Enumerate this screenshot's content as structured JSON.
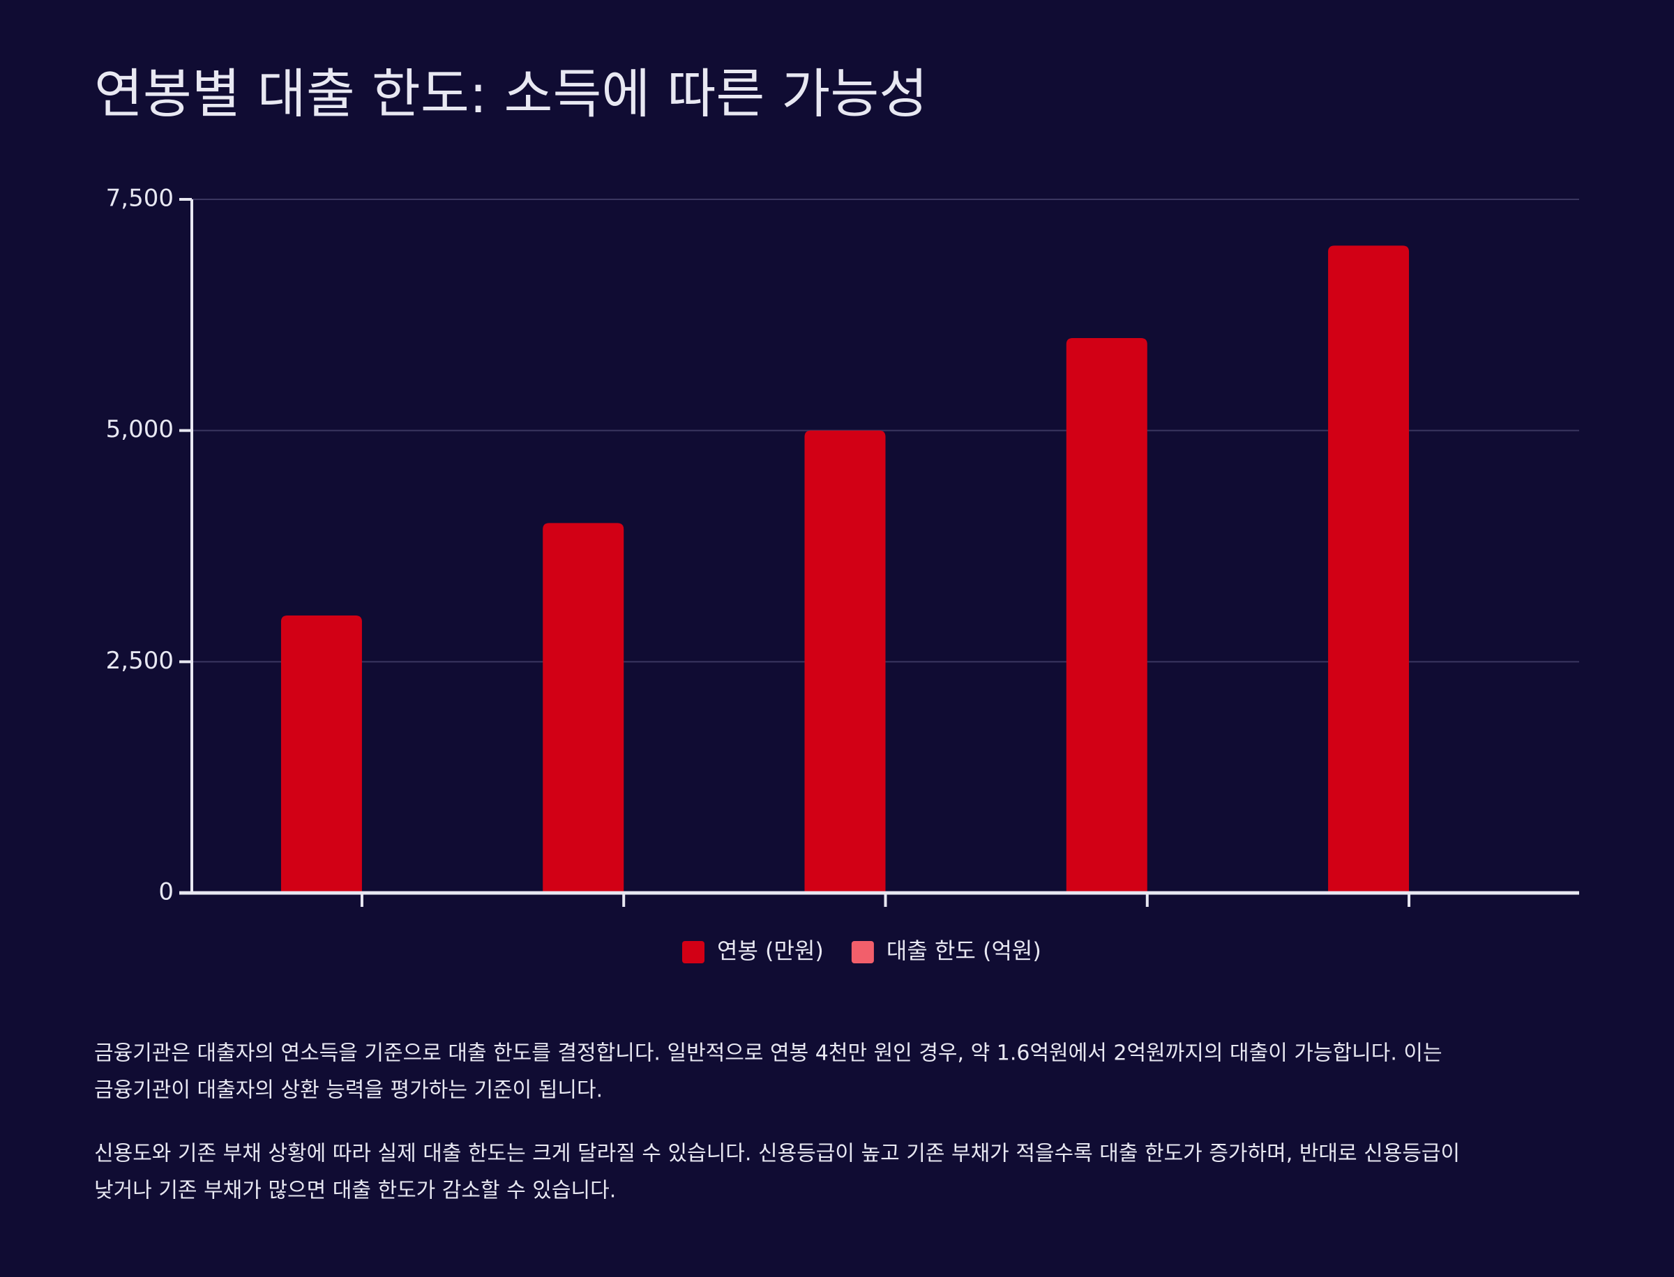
{
  "chart_data": {
    "type": "bar",
    "title": "연봉별 대출 한도: 소득에 따른 가능성",
    "categories": [
      null,
      null,
      null,
      null,
      null
    ],
    "series": [
      {
        "name": "연봉 (만원)",
        "color": "#d20015",
        "values": [
          3000,
          4000,
          5000,
          6000,
          7000
        ]
      },
      {
        "name": "대출 한도 (억원)",
        "color": "#f25f6b",
        "values": [
          0,
          0,
          0,
          0,
          0
        ]
      }
    ],
    "ylim": [
      0,
      7500
    ],
    "yticks": [
      0,
      {
        "value": 2500,
        "label": "2,500"
      },
      {
        "value": 5000,
        "label": "5,000"
      },
      {
        "value": 7500,
        "label": "7,500"
      }
    ],
    "grid": true,
    "legend": "bottom"
  },
  "paragraphs": [
    [
      "금융기관은 대출자의 연소득을 기준으로 대출 한도를 결정합니다. 일반적으로 연봉 4천만 원인 경우, 약 1.6억원에서 2억원까지의 대출이 가능합니다. 이는",
      "금융기관이 대출자의 상환 능력을 평가하는 기준이 됩니다."
    ],
    [
      "신용도와 기존 부채 상황에 따라 실제 대출 한도는 크게 달라질 수 있습니다. 신용등급이 높고 기존 부채가 적을수록 대출 한도가 증가하며, 반대로 신용등급이",
      "낮거나 기존 부채가 많으면 대출 한도가 감소할 수 있습니다."
    ]
  ]
}
